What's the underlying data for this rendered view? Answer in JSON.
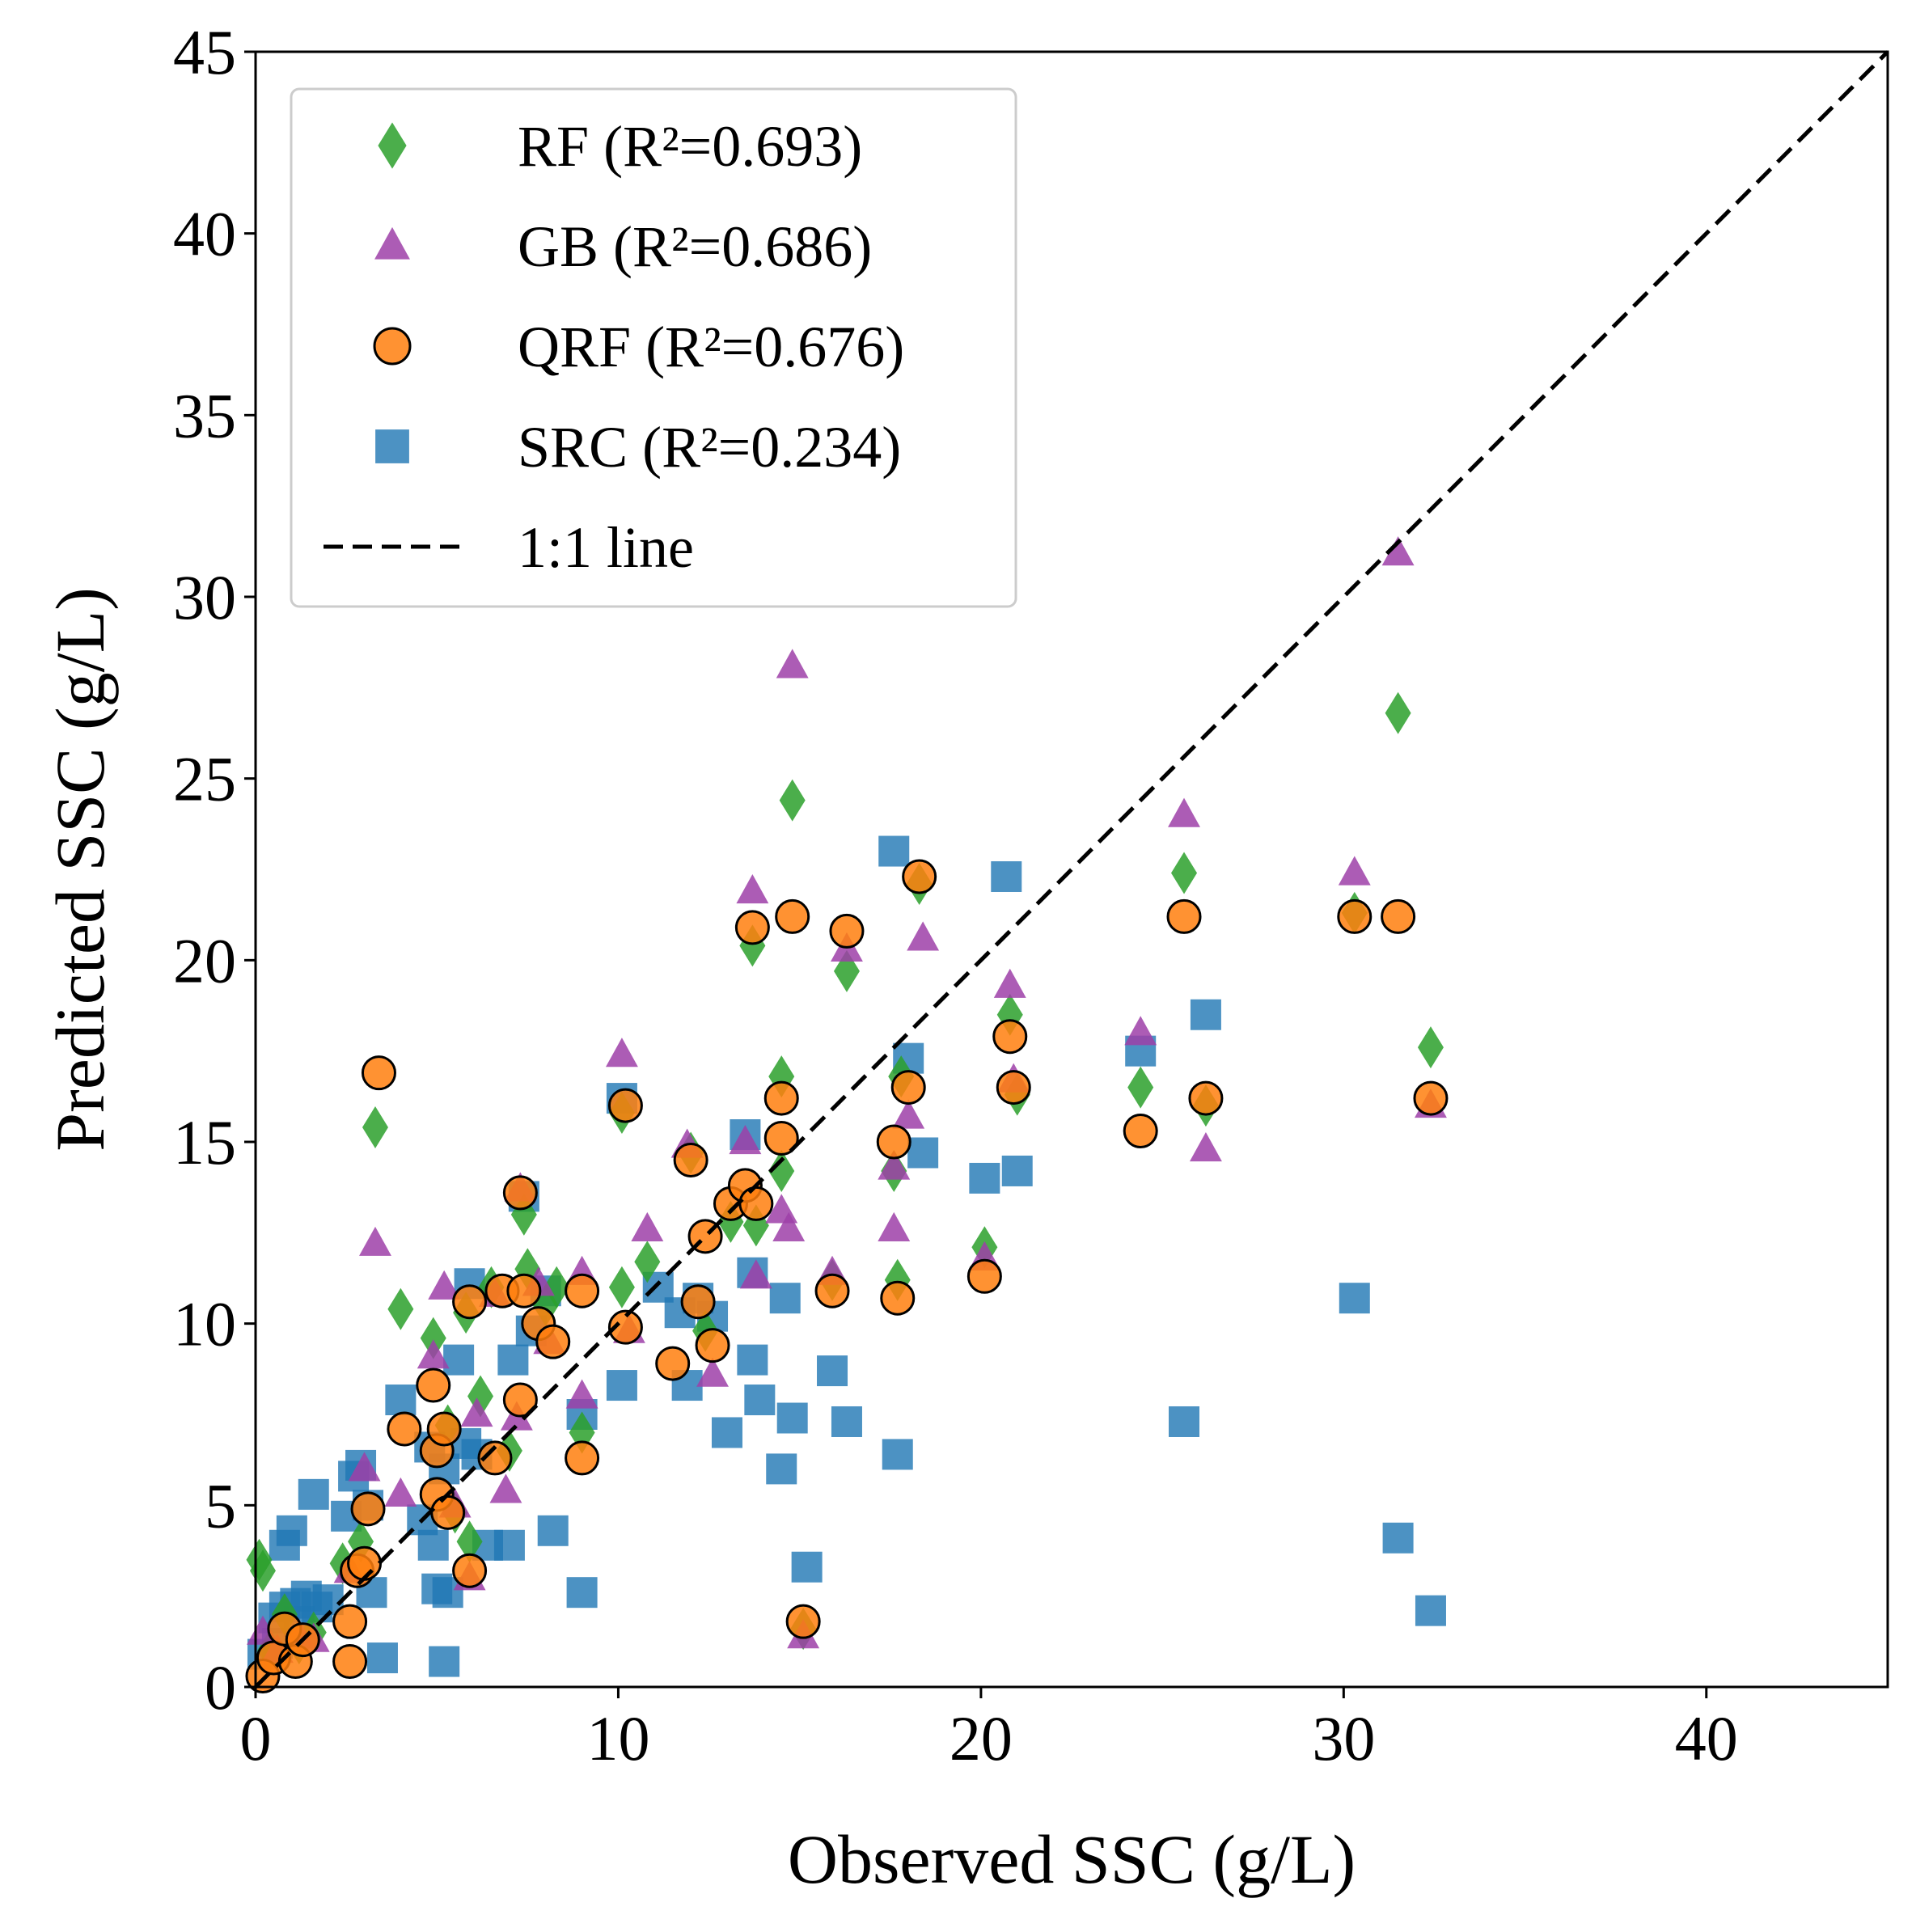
{
  "chart_data": {
    "type": "scatter",
    "title": "",
    "xlabel": "Observed SSC (g/L)",
    "ylabel": "Predicted SSC (g/L)",
    "xlim": [
      0,
      45
    ],
    "ylim": [
      0,
      45
    ],
    "x_ticks": [
      0,
      10,
      20,
      30,
      40
    ],
    "y_ticks": [
      0,
      5,
      10,
      15,
      20,
      25,
      30,
      35,
      40,
      45
    ],
    "grid": false,
    "legend_position": "top-left",
    "reference_line": {
      "name": "1:1 line",
      "style": "dashed",
      "color": "#000000",
      "from": [
        0,
        0
      ],
      "to": [
        45,
        45
      ]
    },
    "series": [
      {
        "name": "SRC (R²=0.234)",
        "marker": "square",
        "color": "#1f77b4",
        "points": [
          [
            0.2,
            0.9
          ],
          [
            0.5,
            1.9
          ],
          [
            0.6,
            1.2
          ],
          [
            0.8,
            2.2
          ],
          [
            0.8,
            3.9
          ],
          [
            1.0,
            4.3
          ],
          [
            1.1,
            2.3
          ],
          [
            1.2,
            1.8
          ],
          [
            1.4,
            2.5
          ],
          [
            1.6,
            5.3
          ],
          [
            1.7,
            2.2
          ],
          [
            2.0,
            2.4
          ],
          [
            2.5,
            4.7
          ],
          [
            2.7,
            5.8
          ],
          [
            2.9,
            6.1
          ],
          [
            3.1,
            5.0
          ],
          [
            3.2,
            2.6
          ],
          [
            3.5,
            0.8
          ],
          [
            4.0,
            7.9
          ],
          [
            4.6,
            4.6
          ],
          [
            4.8,
            6.6
          ],
          [
            4.9,
            3.9
          ],
          [
            5.0,
            2.7
          ],
          [
            5.2,
            0.7
          ],
          [
            5.2,
            6.0
          ],
          [
            5.3,
            2.6
          ],
          [
            5.6,
            9.0
          ],
          [
            5.8,
            6.7
          ],
          [
            5.9,
            11.1
          ],
          [
            6.1,
            6.4
          ],
          [
            6.4,
            3.9
          ],
          [
            7.0,
            3.9
          ],
          [
            7.1,
            9.0
          ],
          [
            7.4,
            13.5
          ],
          [
            7.6,
            9.8
          ],
          [
            8.2,
            4.3
          ],
          [
            8.0,
            10.9
          ],
          [
            9.0,
            2.6
          ],
          [
            9.0,
            7.5
          ],
          [
            10.1,
            8.3
          ],
          [
            10.1,
            16.2
          ],
          [
            11.1,
            11.0
          ],
          [
            11.7,
            10.3
          ],
          [
            11.9,
            8.3
          ],
          [
            12.2,
            10.7
          ],
          [
            12.6,
            10.2
          ],
          [
            13.0,
            7.0
          ],
          [
            13.5,
            15.2
          ],
          [
            13.7,
            11.4
          ],
          [
            13.9,
            7.9
          ],
          [
            13.7,
            9.0
          ],
          [
            14.5,
            6.0
          ],
          [
            14.6,
            10.7
          ],
          [
            14.8,
            7.4
          ],
          [
            15.2,
            3.3
          ],
          [
            15.9,
            8.7
          ],
          [
            16.3,
            7.3
          ],
          [
            17.6,
            23.0
          ],
          [
            17.7,
            6.4
          ],
          [
            18.0,
            17.3
          ],
          [
            18.4,
            14.7
          ],
          [
            20.1,
            14.0
          ],
          [
            20.7,
            22.3
          ],
          [
            21.0,
            14.2
          ],
          [
            24.4,
            17.5
          ],
          [
            25.6,
            7.3
          ],
          [
            26.2,
            18.5
          ],
          [
            30.3,
            10.7
          ],
          [
            31.5,
            4.1
          ],
          [
            32.4,
            2.1
          ]
        ]
      },
      {
        "name": "RF (R²=0.693)",
        "marker": "diamond",
        "color": "#2ca02c",
        "points": [
          [
            0.1,
            3.5
          ],
          [
            0.2,
            3.2
          ],
          [
            0.4,
            1.0
          ],
          [
            0.8,
            2.0
          ],
          [
            1.2,
            1.2
          ],
          [
            1.6,
            1.5
          ],
          [
            2.4,
            3.4
          ],
          [
            2.9,
            4.0
          ],
          [
            3.3,
            15.4
          ],
          [
            4.0,
            10.4
          ],
          [
            4.9,
            9.6
          ],
          [
            5.3,
            7.2
          ],
          [
            5.5,
            4.8
          ],
          [
            5.8,
            10.3
          ],
          [
            5.9,
            4.0
          ],
          [
            6.2,
            8.0
          ],
          [
            6.5,
            11.0
          ],
          [
            7.0,
            6.5
          ],
          [
            7.4,
            13.0
          ],
          [
            7.5,
            11.5
          ],
          [
            8.0,
            10.5
          ],
          [
            8.3,
            11.0
          ],
          [
            9.0,
            7.0
          ],
          [
            10.1,
            15.8
          ],
          [
            10.1,
            11.0
          ],
          [
            10.8,
            11.7
          ],
          [
            12.0,
            14.7
          ],
          [
            12.4,
            9.8
          ],
          [
            13.1,
            12.8
          ],
          [
            13.7,
            20.4
          ],
          [
            13.8,
            12.7
          ],
          [
            14.5,
            16.8
          ],
          [
            14.5,
            14.2
          ],
          [
            14.8,
            24.4
          ],
          [
            15.1,
            1.6
          ],
          [
            15.9,
            11.2
          ],
          [
            16.3,
            19.7
          ],
          [
            17.6,
            14.2
          ],
          [
            17.7,
            11.2
          ],
          [
            17.8,
            16.8
          ],
          [
            18.3,
            22.1
          ],
          [
            20.1,
            12.1
          ],
          [
            20.8,
            18.5
          ],
          [
            21.0,
            16.3
          ],
          [
            24.4,
            16.5
          ],
          [
            25.6,
            22.4
          ],
          [
            26.2,
            16.0
          ],
          [
            30.3,
            21.3
          ],
          [
            31.5,
            26.8
          ],
          [
            32.4,
            17.6
          ]
        ]
      },
      {
        "name": "GB (R²=0.686)",
        "marker": "triangle",
        "color": "#9e3fa8",
        "points": [
          [
            0.2,
            1.5
          ],
          [
            0.6,
            1.0
          ],
          [
            1.2,
            1.4
          ],
          [
            1.6,
            1.3
          ],
          [
            2.6,
            3.2
          ],
          [
            3.0,
            6.0
          ],
          [
            3.3,
            12.2
          ],
          [
            4.0,
            5.3
          ],
          [
            4.9,
            9.1
          ],
          [
            5.2,
            11.0
          ],
          [
            5.5,
            5.0
          ],
          [
            5.9,
            3.0
          ],
          [
            6.1,
            7.5
          ],
          [
            6.6,
            10.8
          ],
          [
            6.9,
            5.4
          ],
          [
            7.2,
            7.4
          ],
          [
            7.3,
            13.7
          ],
          [
            7.8,
            11.1
          ],
          [
            8.1,
            9.5
          ],
          [
            9.0,
            11.4
          ],
          [
            9.0,
            8.0
          ],
          [
            10.1,
            17.4
          ],
          [
            10.3,
            9.8
          ],
          [
            10.8,
            12.6
          ],
          [
            11.9,
            14.9
          ],
          [
            12.6,
            8.6
          ],
          [
            13.5,
            15.0
          ],
          [
            13.7,
            21.9
          ],
          [
            13.8,
            11.3
          ],
          [
            14.5,
            13.1
          ],
          [
            14.7,
            12.6
          ],
          [
            14.8,
            28.1
          ],
          [
            15.1,
            1.4
          ],
          [
            15.9,
            11.4
          ],
          [
            16.3,
            20.3
          ],
          [
            17.6,
            14.3
          ],
          [
            17.6,
            12.6
          ],
          [
            18.0,
            15.7
          ],
          [
            18.4,
            20.6
          ],
          [
            20.1,
            11.8
          ],
          [
            20.8,
            19.3
          ],
          [
            20.9,
            16.7
          ],
          [
            24.4,
            18.0
          ],
          [
            25.6,
            24.0
          ],
          [
            26.2,
            14.8
          ],
          [
            30.3,
            22.4
          ],
          [
            31.5,
            31.2
          ],
          [
            32.4,
            16.0
          ]
        ]
      },
      {
        "name": "QRF (R²=0.676)",
        "marker": "circle",
        "color": "#ff7f0e",
        "points": [
          [
            0.2,
            0.3
          ],
          [
            0.5,
            0.8
          ],
          [
            0.8,
            1.6
          ],
          [
            1.1,
            0.7
          ],
          [
            1.3,
            1.3
          ],
          [
            2.6,
            1.8
          ],
          [
            2.6,
            0.7
          ],
          [
            2.8,
            3.2
          ],
          [
            3.0,
            3.4
          ],
          [
            3.1,
            4.9
          ],
          [
            3.4,
            16.9
          ],
          [
            4.1,
            7.1
          ],
          [
            4.9,
            8.3
          ],
          [
            5.0,
            6.5
          ],
          [
            5.0,
            5.3
          ],
          [
            5.2,
            7.1
          ],
          [
            5.3,
            4.8
          ],
          [
            5.9,
            3.2
          ],
          [
            5.9,
            10.6
          ],
          [
            6.6,
            6.3
          ],
          [
            6.8,
            10.9
          ],
          [
            7.3,
            13.6
          ],
          [
            7.3,
            7.9
          ],
          [
            7.4,
            10.9
          ],
          [
            7.8,
            10.0
          ],
          [
            8.2,
            9.5
          ],
          [
            9.0,
            10.9
          ],
          [
            9.0,
            6.3
          ],
          [
            10.2,
            9.9
          ],
          [
            10.2,
            16.0
          ],
          [
            11.5,
            8.9
          ],
          [
            12.0,
            14.5
          ],
          [
            12.2,
            10.6
          ],
          [
            12.4,
            12.4
          ],
          [
            12.6,
            9.4
          ],
          [
            13.1,
            13.3
          ],
          [
            13.5,
            13.8
          ],
          [
            13.7,
            20.9
          ],
          [
            13.8,
            13.3
          ],
          [
            14.5,
            16.2
          ],
          [
            14.5,
            15.1
          ],
          [
            14.8,
            21.2
          ],
          [
            15.1,
            1.8
          ],
          [
            15.9,
            10.9
          ],
          [
            16.3,
            20.8
          ],
          [
            17.6,
            15.0
          ],
          [
            17.7,
            10.7
          ],
          [
            18.0,
            16.5
          ],
          [
            18.3,
            22.3
          ],
          [
            20.1,
            11.3
          ],
          [
            20.8,
            17.9
          ],
          [
            20.9,
            16.5
          ],
          [
            24.4,
            15.3
          ],
          [
            25.6,
            21.2
          ],
          [
            26.2,
            16.2
          ],
          [
            30.3,
            21.2
          ],
          [
            31.5,
            21.2
          ],
          [
            32.4,
            16.2
          ]
        ]
      }
    ],
    "legend": [
      {
        "label": "RF (R²=0.693)",
        "marker": "diamond",
        "color": "#2ca02c"
      },
      {
        "label": "GB (R²=0.686)",
        "marker": "triangle",
        "color": "#9e3fa8"
      },
      {
        "label": "QRF (R²=0.676)",
        "marker": "circle",
        "color": "#ff7f0e"
      },
      {
        "label": "SRC (R²=0.234)",
        "marker": "square",
        "color": "#1f77b4"
      },
      {
        "label": "1:1 line",
        "marker": "dashed-line",
        "color": "#000000"
      }
    ]
  }
}
